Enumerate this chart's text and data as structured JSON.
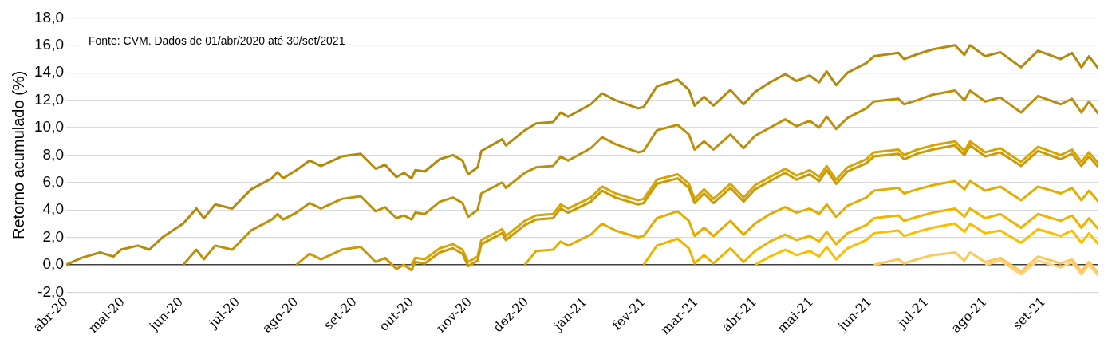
{
  "chart_data": {
    "type": "line",
    "ylabel": "Retorno acumulado (%)",
    "annotations": [
      "Fonte: CVM. Dados de 01/abr/2020 até 30/set/2021"
    ],
    "x": [
      "2020-04-01",
      "2020-04-09",
      "2020-04-19",
      "2020-04-26",
      "2020-04-30",
      "2020-05-09",
      "2020-05-15",
      "2020-05-22",
      "2020-06-02",
      "2020-06-09",
      "2020-06-13",
      "2020-06-19",
      "2020-06-28",
      "2020-07-08",
      "2020-07-19",
      "2020-07-22",
      "2020-07-25",
      "2020-08-01",
      "2020-08-08",
      "2020-08-14",
      "2020-08-25",
      "2020-09-04",
      "2020-09-12",
      "2020-09-17",
      "2020-09-23",
      "2020-09-27",
      "2020-10-01",
      "2020-10-03",
      "2020-10-08",
      "2020-10-16",
      "2020-10-23",
      "2020-10-28",
      "2020-10-31",
      "2020-11-05",
      "2020-11-07",
      "2020-11-18",
      "2020-11-20",
      "2020-11-30",
      "2020-12-06",
      "2020-12-15",
      "2020-12-19",
      "2020-12-23",
      "2021-01-04",
      "2021-01-10",
      "2021-01-17",
      "2021-01-29",
      "2021-02-01",
      "2021-02-08",
      "2021-02-19",
      "2021-02-25",
      "2021-02-28",
      "2021-03-05",
      "2021-03-10",
      "2021-03-19",
      "2021-03-26",
      "2021-04-01",
      "2021-04-09",
      "2021-04-17",
      "2021-04-23",
      "2021-04-30",
      "2021-05-05",
      "2021-05-09",
      "2021-05-14",
      "2021-05-20",
      "2021-05-30",
      "2021-06-03",
      "2021-06-16",
      "2021-06-19",
      "2021-06-26",
      "2021-07-04",
      "2021-07-16",
      "2021-07-21",
      "2021-07-24",
      "2021-08-01",
      "2021-08-09",
      "2021-08-20",
      "2021-08-29",
      "2021-09-10",
      "2021-09-16",
      "2021-09-21",
      "2021-09-25",
      "2021-09-30"
    ],
    "series": [
      {
        "color": "#b38a0c",
        "values": [
          0,
          0.5,
          0.9,
          0.6,
          1.1,
          1.4,
          1.1,
          2.0,
          3.0,
          4.1,
          3.4,
          4.4,
          4.1,
          5.5,
          6.3,
          6.75,
          6.3,
          6.9,
          7.6,
          7.2,
          7.9,
          8.1,
          7.0,
          7.3,
          6.4,
          6.7,
          6.3,
          6.9,
          6.8,
          7.7,
          8.0,
          7.6,
          6.6,
          7.1,
          8.3,
          9.15,
          8.7,
          9.8,
          10.3,
          10.4,
          11.1,
          10.8,
          11.7,
          12.5,
          12.0,
          11.4,
          11.5,
          13.0,
          13.5,
          12.75,
          11.6,
          12.25,
          11.6,
          12.75,
          11.7,
          12.6,
          13.3,
          13.9,
          13.4,
          13.8,
          13.3,
          14.1,
          13.1,
          14.0,
          14.7,
          15.2,
          15.45,
          15.0,
          15.35,
          15.7,
          16.0,
          15.3,
          16.0,
          15.2,
          15.5,
          14.4,
          15.6,
          15.0,
          15.45,
          14.4,
          15.2,
          14.3
        ]
      },
      {
        "color": "#bd900c",
        "values": [
          null,
          null,
          null,
          null,
          null,
          null,
          null,
          null,
          0,
          1.1,
          0.4,
          1.4,
          1.1,
          2.5,
          3.3,
          3.7,
          3.3,
          3.8,
          4.5,
          4.1,
          4.8,
          5.0,
          3.9,
          4.2,
          3.4,
          3.6,
          3.3,
          3.8,
          3.7,
          4.6,
          4.9,
          4.5,
          3.5,
          4.0,
          5.2,
          6.0,
          5.6,
          6.7,
          7.1,
          7.2,
          7.9,
          7.6,
          8.5,
          9.3,
          8.8,
          8.2,
          8.3,
          9.8,
          10.2,
          9.5,
          8.4,
          9.0,
          8.4,
          9.5,
          8.5,
          9.4,
          10.0,
          10.6,
          10.1,
          10.5,
          10.0,
          10.8,
          9.9,
          10.7,
          11.4,
          11.9,
          12.1,
          11.7,
          12.0,
          12.4,
          12.7,
          12.0,
          12.7,
          11.9,
          12.2,
          11.1,
          12.3,
          11.7,
          12.1,
          11.1,
          11.9,
          11.0
        ]
      },
      {
        "color": "#cc9a06",
        "values": [
          null,
          null,
          null,
          null,
          null,
          null,
          null,
          null,
          null,
          null,
          null,
          null,
          null,
          null,
          null,
          null,
          null,
          0,
          0.8,
          0.4,
          1.1,
          1.3,
          0.2,
          0.5,
          -0.3,
          0.0,
          -0.4,
          0.2,
          0.1,
          0.9,
          1.2,
          0.8,
          -0.1,
          0.3,
          1.5,
          2.3,
          1.8,
          2.9,
          3.3,
          3.4,
          4.1,
          3.8,
          4.6,
          5.4,
          4.9,
          4.4,
          4.5,
          5.9,
          6.3,
          5.6,
          4.5,
          5.2,
          4.5,
          5.6,
          4.6,
          5.5,
          6.1,
          6.7,
          6.2,
          6.6,
          6.1,
          6.9,
          5.9,
          6.8,
          7.4,
          7.9,
          8.1,
          7.7,
          8.1,
          8.4,
          8.7,
          8.0,
          8.7,
          7.9,
          8.2,
          7.2,
          8.3,
          7.7,
          8.1,
          7.2,
          7.9,
          7.1
        ]
      },
      {
        "color": "#d6a500",
        "values": [
          null,
          null,
          null,
          null,
          null,
          null,
          null,
          null,
          null,
          null,
          null,
          null,
          null,
          null,
          null,
          null,
          null,
          null,
          null,
          null,
          null,
          null,
          null,
          null,
          null,
          null,
          0,
          0.5,
          0.4,
          1.2,
          1.5,
          1.1,
          0.2,
          0.6,
          1.8,
          2.6,
          2.1,
          3.2,
          3.6,
          3.7,
          4.4,
          4.1,
          4.9,
          5.7,
          5.2,
          4.7,
          4.8,
          6.2,
          6.6,
          5.9,
          4.8,
          5.5,
          4.8,
          5.9,
          4.9,
          5.8,
          6.4,
          7.0,
          6.5,
          6.9,
          6.4,
          7.2,
          6.2,
          7.1,
          7.7,
          8.2,
          8.4,
          8.0,
          8.4,
          8.7,
          9.0,
          8.3,
          9.0,
          8.2,
          8.5,
          7.5,
          8.6,
          8.0,
          8.4,
          7.5,
          8.2,
          7.4
        ]
      },
      {
        "color": "#e2ad00",
        "values": [
          null,
          null,
          null,
          null,
          null,
          null,
          null,
          null,
          null,
          null,
          null,
          null,
          null,
          null,
          null,
          null,
          null,
          null,
          null,
          null,
          null,
          null,
          null,
          null,
          null,
          null,
          null,
          null,
          null,
          null,
          null,
          null,
          null,
          null,
          null,
          null,
          null,
          0,
          1.0,
          1.1,
          1.7,
          1.4,
          2.2,
          3.0,
          2.5,
          2.0,
          2.1,
          3.4,
          3.9,
          3.2,
          2.1,
          2.7,
          2.1,
          3.2,
          2.2,
          3.0,
          3.7,
          4.2,
          3.8,
          4.1,
          3.7,
          4.4,
          3.5,
          4.3,
          4.9,
          5.4,
          5.6,
          5.2,
          5.5,
          5.8,
          6.1,
          5.5,
          6.1,
          5.4,
          5.7,
          4.7,
          5.7,
          5.2,
          5.6,
          4.7,
          5.4,
          4.6
        ]
      },
      {
        "color": "#edb400",
        "values": [
          null,
          null,
          null,
          null,
          null,
          null,
          null,
          null,
          null,
          null,
          null,
          null,
          null,
          null,
          null,
          null,
          null,
          null,
          null,
          null,
          null,
          null,
          null,
          null,
          null,
          null,
          null,
          null,
          null,
          null,
          null,
          null,
          null,
          null,
          null,
          null,
          null,
          null,
          null,
          null,
          null,
          null,
          null,
          null,
          null,
          null,
          0,
          1.4,
          1.9,
          1.2,
          0.1,
          0.7,
          0.1,
          1.2,
          0.2,
          1.0,
          1.7,
          2.2,
          1.8,
          2.1,
          1.7,
          2.4,
          1.5,
          2.3,
          2.9,
          3.4,
          3.6,
          3.2,
          3.5,
          3.8,
          4.1,
          3.5,
          4.1,
          3.4,
          3.7,
          2.7,
          3.7,
          3.2,
          3.6,
          2.7,
          3.4,
          2.6
        ]
      },
      {
        "color": "#f8bf00",
        "values": [
          null,
          null,
          null,
          null,
          null,
          null,
          null,
          null,
          null,
          null,
          null,
          null,
          null,
          null,
          null,
          null,
          null,
          null,
          null,
          null,
          null,
          null,
          null,
          null,
          null,
          null,
          null,
          null,
          null,
          null,
          null,
          null,
          null,
          null,
          null,
          null,
          null,
          null,
          null,
          null,
          null,
          null,
          null,
          null,
          null,
          null,
          null,
          null,
          null,
          null,
          null,
          null,
          null,
          null,
          null,
          0,
          0.6,
          1.1,
          0.7,
          1.0,
          0.6,
          1.3,
          0.4,
          1.2,
          1.8,
          2.3,
          2.5,
          2.1,
          2.4,
          2.7,
          3.0,
          2.4,
          3.0,
          2.3,
          2.5,
          1.6,
          2.6,
          2.1,
          2.5,
          1.6,
          2.3,
          1.5
        ]
      },
      {
        "color": "#fcc85a",
        "values": [
          null,
          null,
          null,
          null,
          null,
          null,
          null,
          null,
          null,
          null,
          null,
          null,
          null,
          null,
          null,
          null,
          null,
          null,
          null,
          null,
          null,
          null,
          null,
          null,
          null,
          null,
          null,
          null,
          null,
          null,
          null,
          null,
          null,
          null,
          null,
          null,
          null,
          null,
          null,
          null,
          null,
          null,
          null,
          null,
          null,
          null,
          null,
          null,
          null,
          null,
          null,
          null,
          null,
          null,
          null,
          null,
          null,
          null,
          null,
          null,
          null,
          null,
          null,
          null,
          null,
          0,
          0.4,
          0.1,
          0.4,
          0.7,
          0.9,
          0.3,
          0.9,
          0.2,
          0.5,
          -0.5,
          0.6,
          0.1,
          0.4,
          -0.5,
          0.2,
          -0.6
        ]
      },
      {
        "color": "#fdd27e",
        "values": [
          null,
          null,
          null,
          null,
          null,
          null,
          null,
          null,
          null,
          null,
          null,
          null,
          null,
          null,
          null,
          null,
          null,
          null,
          null,
          null,
          null,
          null,
          null,
          null,
          null,
          null,
          null,
          null,
          null,
          null,
          null,
          null,
          null,
          null,
          null,
          null,
          null,
          null,
          null,
          null,
          null,
          null,
          null,
          null,
          null,
          null,
          null,
          null,
          null,
          null,
          null,
          null,
          null,
          null,
          null,
          null,
          null,
          null,
          null,
          null,
          null,
          null,
          null,
          null,
          null,
          null,
          null,
          null,
          null,
          null,
          null,
          null,
          null,
          0,
          0.3,
          -0.7,
          0.3,
          -0.2,
          0.2,
          -0.7,
          0.0,
          -0.8
        ]
      }
    ],
    "xlim": [
      "2020-04-01",
      "2021-09-30"
    ],
    "xticks": [
      {
        "value": "2020-04-01",
        "label": "abr-20"
      },
      {
        "value": "2020-05-01",
        "label": "mai-20"
      },
      {
        "value": "2020-06-01",
        "label": "jun-20"
      },
      {
        "value": "2020-07-01",
        "label": "jul-20"
      },
      {
        "value": "2020-08-01",
        "label": "ago-20"
      },
      {
        "value": "2020-09-01",
        "label": "set-20"
      },
      {
        "value": "2020-10-01",
        "label": "out-20"
      },
      {
        "value": "2020-11-01",
        "label": "nov-20"
      },
      {
        "value": "2020-12-01",
        "label": "dez-20"
      },
      {
        "value": "2021-01-01",
        "label": "jan-21"
      },
      {
        "value": "2021-02-01",
        "label": "fev-21"
      },
      {
        "value": "2021-03-01",
        "label": "mar-21"
      },
      {
        "value": "2021-04-01",
        "label": "abr-21"
      },
      {
        "value": "2021-05-01",
        "label": "mai-21"
      },
      {
        "value": "2021-06-01",
        "label": "jun-21"
      },
      {
        "value": "2021-07-01",
        "label": "jul-21"
      },
      {
        "value": "2021-08-01",
        "label": "ago-21"
      },
      {
        "value": "2021-09-01",
        "label": "set-21"
      }
    ],
    "ylim": [
      -2,
      18
    ],
    "yticks": [
      {
        "value": -2,
        "label": "-2,0"
      },
      {
        "value": 0,
        "label": "0,0"
      },
      {
        "value": 2,
        "label": "2,0"
      },
      {
        "value": 4,
        "label": "4,0"
      },
      {
        "value": 6,
        "label": "6,0"
      },
      {
        "value": 8,
        "label": "8,0"
      },
      {
        "value": 10,
        "label": "10,0"
      },
      {
        "value": 12,
        "label": "12,0"
      },
      {
        "value": 14,
        "label": "14,0"
      },
      {
        "value": 16,
        "label": "16,0"
      },
      {
        "value": 18,
        "label": "18,0"
      }
    ],
    "grid": "y",
    "legend": false,
    "marker": "none",
    "line_style": "solid"
  }
}
